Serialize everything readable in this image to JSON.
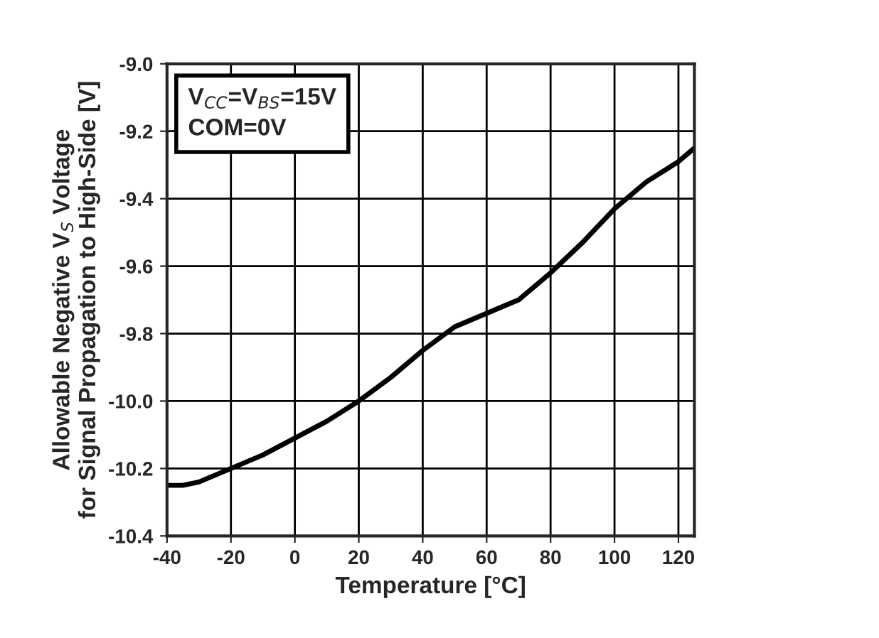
{
  "chart_data": {
    "type": "line",
    "xlabel": "Temperature [°C]",
    "ylabel": "Allowable Negative V$_{S}$ Voltage\nfor Signal Propagation to High-Side [V]",
    "annotations": [
      "V$_{CC}$=V$_{BS}$=15V\nCOM=0V"
    ],
    "x": [
      -40,
      -35,
      -30,
      -25,
      -20,
      -10,
      0,
      10,
      20,
      30,
      40,
      50,
      60,
      70,
      80,
      90,
      100,
      110,
      120,
      125
    ],
    "series": [
      {
        "color": "#000000",
        "values": [
          -10.25,
          -10.25,
          -10.24,
          -10.22,
          -10.2,
          -10.16,
          -10.11,
          -10.06,
          -10.0,
          -9.93,
          -9.85,
          -9.78,
          -9.74,
          -9.7,
          -9.62,
          -9.53,
          -9.43,
          -9.35,
          -9.29,
          -9.25
        ]
      }
    ],
    "xlim": [
      -40,
      125
    ],
    "xticks": [
      -40,
      -20,
      0,
      20,
      40,
      60,
      80,
      100,
      120
    ],
    "ylim": [
      -10.4,
      -9.0
    ],
    "yticks": [
      {
        "value": -10.4,
        "label": "-10.4"
      },
      {
        "value": -10.2,
        "label": "-10.2"
      },
      {
        "value": -10.0,
        "label": "-10.0"
      },
      {
        "value": -9.8,
        "label": "-9.8"
      },
      {
        "value": -9.6,
        "label": "-9.6"
      },
      {
        "value": -9.4,
        "label": "-9.4"
      },
      {
        "value": -9.2,
        "label": "-9.2"
      },
      {
        "value": -9.0,
        "label": "-9.0"
      }
    ],
    "grid": true,
    "line_style": "solid",
    "legend": false
  }
}
